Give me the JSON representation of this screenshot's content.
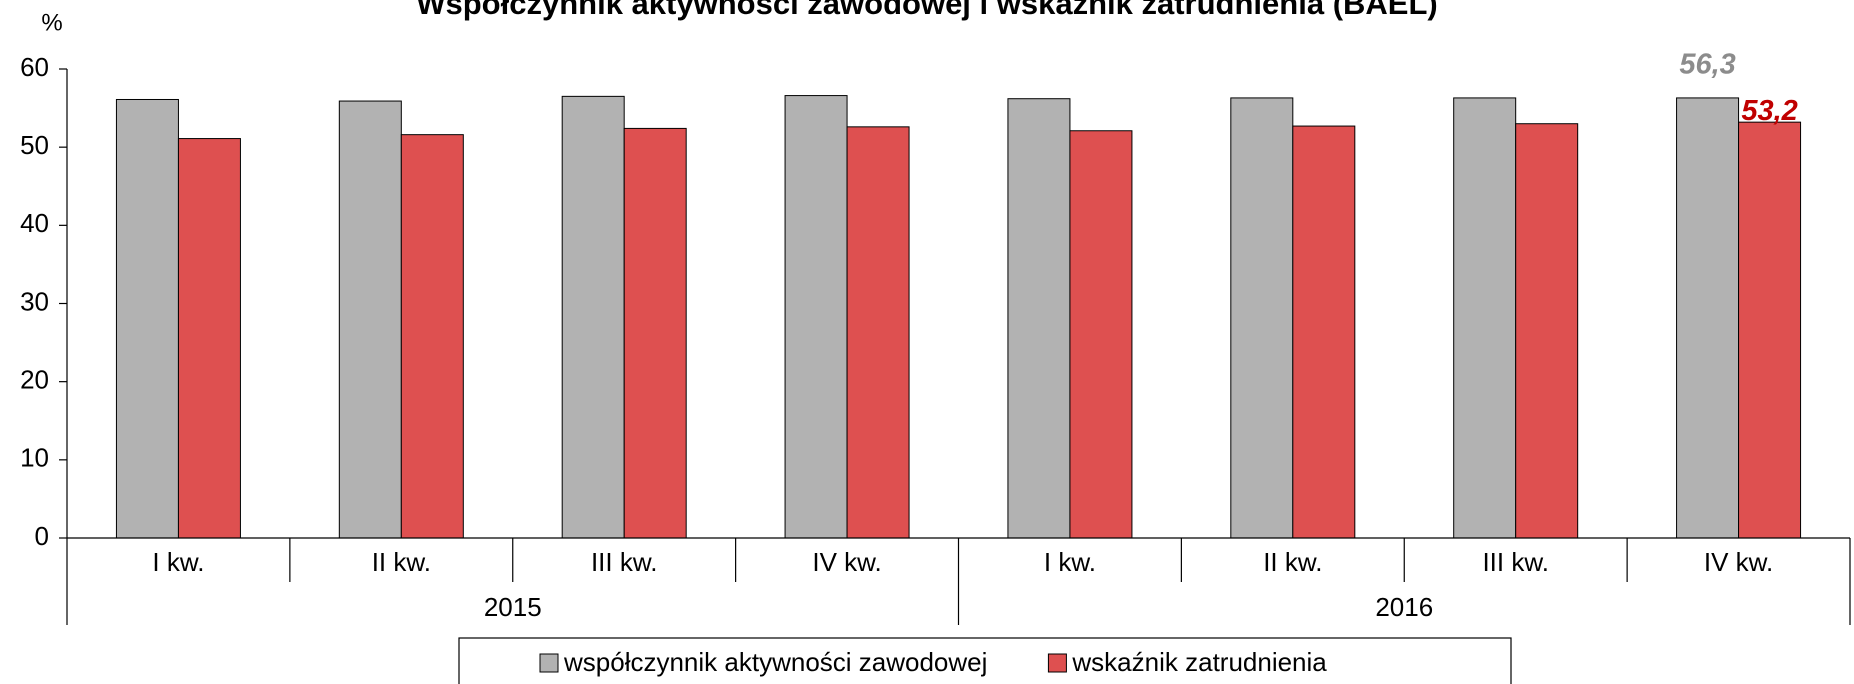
{
  "chart_data": {
    "type": "bar",
    "title": "Współczynnik aktywności zawodowej i wskaźnik zatrudnienia (BAEL)",
    "y_label": "%",
    "categories": [
      "I kw.",
      "II kw.",
      "III kw.",
      "IV kw.",
      "I kw.",
      "II kw.",
      "III kw.",
      "IV kw."
    ],
    "groups": [
      "2015",
      "2016"
    ],
    "series": [
      {
        "name": "współczynnik aktywności zawodowej",
        "color": "#b2b2b2",
        "label_color": "#8c8c8c",
        "values": [
          56.1,
          55.9,
          56.5,
          56.6,
          56.2,
          56.3,
          56.3,
          56.3
        ],
        "value_labels": [
          null,
          null,
          null,
          null,
          null,
          null,
          null,
          "56,3"
        ]
      },
      {
        "name": "wskaźnik zatrudnienia",
        "color": "#de5050",
        "label_color": "#c00000",
        "values": [
          51.1,
          51.6,
          52.4,
          52.6,
          52.1,
          52.7,
          53.0,
          53.2
        ],
        "value_labels": [
          null,
          null,
          null,
          null,
          null,
          null,
          null,
          "53,2"
        ]
      }
    ],
    "ylim": [
      0,
      60
    ],
    "yticks": [
      0,
      10,
      20,
      30,
      40,
      50,
      60
    ],
    "grid": false
  }
}
